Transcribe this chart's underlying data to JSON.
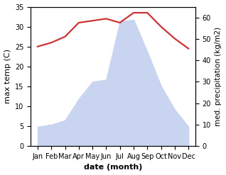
{
  "months": [
    "Jan",
    "Feb",
    "Mar",
    "Apr",
    "May",
    "Jun",
    "Jul",
    "Aug",
    "Sep",
    "Oct",
    "Nov",
    "Dec"
  ],
  "temperature": [
    25,
    26,
    27.5,
    31,
    31.5,
    32,
    31,
    33.5,
    33.5,
    30,
    27,
    24.5
  ],
  "precipitation": [
    9,
    10,
    12,
    22,
    30,
    31,
    58,
    59,
    44,
    28,
    17,
    9
  ],
  "temp_ylim": [
    0,
    35
  ],
  "precip_ylim": [
    0,
    65
  ],
  "temp_yticks": [
    0,
    5,
    10,
    15,
    20,
    25,
    30,
    35
  ],
  "precip_yticks": [
    0,
    10,
    20,
    30,
    40,
    50,
    60
  ],
  "fill_color": "#c8d4f0",
  "fill_alpha": 1.0,
  "line_color": "#cc3333",
  "line_width": 1.6,
  "xlabel": "date (month)",
  "ylabel_left": "max temp (C)",
  "ylabel_right": "med. precipitation (kg/m2)",
  "background_color": "#ffffff",
  "label_fontsize": 8,
  "tick_fontsize": 7
}
